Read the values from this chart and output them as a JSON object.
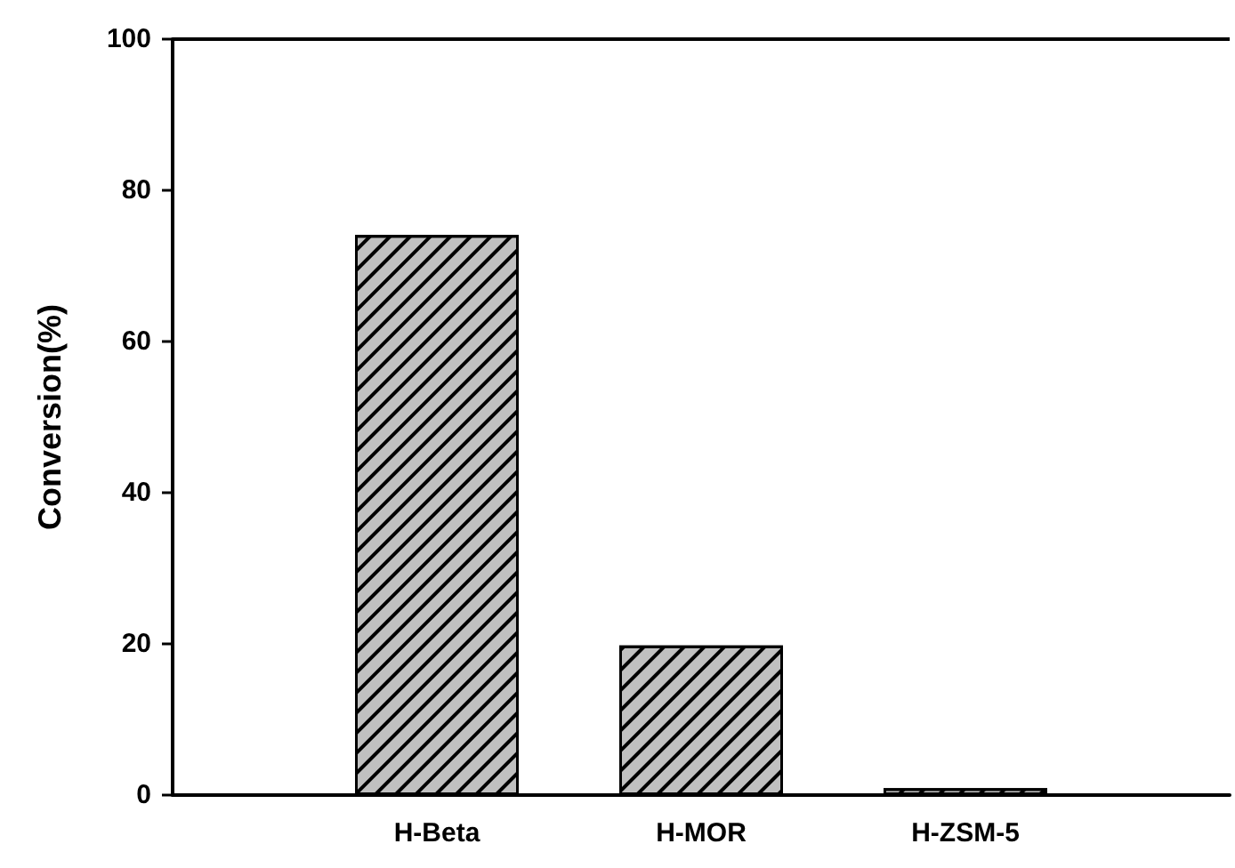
{
  "chart_data": {
    "type": "bar",
    "ylabel": "Conversion(%)",
    "categories": [
      null,
      "H-Beta",
      "H-MOR",
      "H-ZSM-5",
      null
    ],
    "values": [
      null,
      74.1,
      19.8,
      0.9,
      null
    ],
    "color": "#c0c0c0",
    "ylim": [
      0,
      100
    ],
    "yticks": [
      0,
      20,
      40,
      60,
      80,
      100
    ],
    "grid": false
  }
}
